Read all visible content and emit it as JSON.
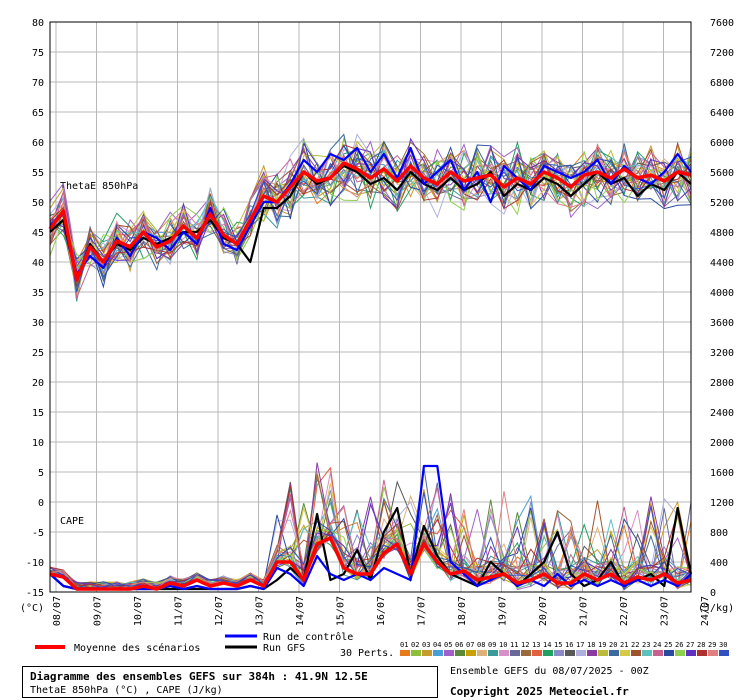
{
  "chart_data": {
    "type": "line",
    "title": "Diagramme des ensembles GEFS sur 384h : 41.9N 12.5E",
    "subtitle": "ThetaE 850hPa (°C) , CAPE (J/kg)",
    "x": [
      "08/07",
      "09/07",
      "10/07",
      "11/07",
      "12/07",
      "13/07",
      "14/07",
      "15/07",
      "16/07",
      "17/07",
      "18/07",
      "19/07",
      "20/07",
      "21/07",
      "22/07",
      "23/07",
      "24/07"
    ],
    "left_axis": {
      "unit": "(°C)",
      "ticks": [
        80,
        75,
        70,
        65,
        60,
        55,
        50,
        45,
        40,
        35,
        30,
        25,
        20,
        15,
        10,
        5,
        0,
        -5,
        -10,
        -15
      ],
      "ylim": [
        -15,
        80
      ]
    },
    "right_axis": {
      "unit": "(J/kg)",
      "ticks": [
        7600,
        7200,
        6800,
        6400,
        6000,
        5600,
        5200,
        4800,
        4400,
        4000,
        3600,
        3200,
        2800,
        2400,
        2000,
        1600,
        1200,
        800,
        400,
        0
      ],
      "ylim": [
        0,
        7600
      ]
    },
    "grid": true,
    "panel_labels": {
      "thetae": "ThetaE 850hPa",
      "cape": "CAPE"
    },
    "series": [
      {
        "name": "Moyenne des scénarios",
        "color": "#ff0000",
        "thetae": [
          45.5,
          48.5,
          37,
          42.5,
          40,
          43.5,
          42.5,
          45,
          42.5,
          43.5,
          46,
          44,
          48,
          44.5,
          43,
          47,
          51,
          50,
          52.5,
          55,
          53.5,
          54,
          56.5,
          55.5,
          54,
          55.5,
          53.5,
          56,
          54,
          53,
          55,
          53.5,
          54,
          54.5,
          52.5,
          54,
          53,
          55,
          54,
          52.5,
          54.5,
          55,
          54,
          55.5,
          54,
          54.5,
          53.5,
          55,
          54.5
        ],
        "cape": [
          -12,
          -12.5,
          -14.5,
          -14.5,
          -14.5,
          -14.5,
          -14.5,
          -14,
          -14.5,
          -13.5,
          -14,
          -13,
          -14,
          -13.5,
          -14,
          -13,
          -14,
          -10,
          -10,
          -13,
          -7,
          -6,
          -11,
          -12,
          -12,
          -8.5,
          -7,
          -12,
          -7,
          -10,
          -12,
          -11.5,
          -13,
          -12.5,
          -12,
          -13.5,
          -13,
          -12,
          -13.5,
          -13.5,
          -12,
          -13,
          -12,
          -13.5,
          -12.5,
          -13,
          -12,
          -13.5,
          -13
        ]
      },
      {
        "name": "Run de contrôle",
        "color": "#0000ff",
        "thetae": [
          46,
          48,
          38,
          41,
          39,
          44,
          41,
          45,
          44,
          42,
          45,
          43,
          49,
          43,
          42,
          46,
          50,
          50,
          53,
          57,
          55,
          58,
          57,
          59,
          55,
          58,
          54,
          59,
          53,
          55,
          57,
          52,
          55,
          50,
          56,
          54,
          52,
          56,
          55,
          54,
          55,
          57,
          53,
          56,
          54,
          53,
          55,
          58,
          55
        ],
        "cape": [
          -12,
          -14,
          -14.5,
          -14.5,
          -14.5,
          -14.5,
          -14.5,
          -14.5,
          -14.5,
          -14,
          -14.5,
          -14,
          -14.5,
          -14.5,
          -14.5,
          -14,
          -14.5,
          -11,
          -12,
          -14,
          -9,
          -12,
          -13,
          -12,
          -13,
          -11,
          -12,
          -13,
          6,
          6,
          -10,
          -12,
          -14,
          -13,
          -12,
          -14,
          -13,
          -14,
          -12,
          -14,
          -13,
          -14,
          -13,
          -14,
          -13,
          -14,
          -13,
          -14,
          -12
        ]
      },
      {
        "name": "Run GFS",
        "color": "#000000",
        "thetae": [
          45,
          47,
          37,
          43,
          40,
          43,
          42,
          44,
          43,
          44,
          45,
          45,
          47,
          44,
          43,
          40,
          49,
          49,
          51,
          55,
          53,
          54,
          56,
          55,
          53,
          54,
          52,
          55,
          53,
          52,
          54,
          52,
          53,
          55,
          51,
          53,
          52,
          54,
          53,
          51,
          53,
          55,
          53,
          54,
          51,
          53,
          52,
          55,
          53
        ],
        "cape": [
          -12,
          -14,
          -14.5,
          -14.5,
          -14.5,
          -14.5,
          -14.5,
          -14.5,
          -14.5,
          -14.5,
          -14.5,
          -14.5,
          -14.5,
          -14.5,
          -14.5,
          -14,
          -14.5,
          -13,
          -11,
          -13,
          -2,
          -13,
          -12,
          -8,
          -13,
          -5,
          -1,
          -12,
          -4,
          -9,
          -12,
          -13,
          -14,
          -10,
          -12,
          -14,
          -12,
          -10,
          -5,
          -12,
          -14,
          -13,
          -10,
          -14,
          -13,
          -12,
          -14,
          -1,
          -12
        ]
      }
    ],
    "perturbation_count": 30,
    "perturbation_labels": [
      "01",
      "02",
      "03",
      "04",
      "05",
      "06",
      "07",
      "08",
      "09",
      "10",
      "11",
      "12",
      "13",
      "14",
      "15",
      "16",
      "17",
      "18",
      "19",
      "20",
      "21",
      "22",
      "23",
      "24",
      "25",
      "26",
      "27",
      "28",
      "29",
      "30"
    ],
    "perturbation_colors": [
      "#e87a1a",
      "#8cbf3a",
      "#c89b2e",
      "#4a9ed8",
      "#a060c8",
      "#5a8a3a",
      "#c8a000",
      "#dcb27a",
      "#3a9a9a",
      "#d890c8",
      "#6a6a9a",
      "#9a6a3a",
      "#e06040",
      "#20a060",
      "#8a8ac8",
      "#5a5a5a",
      "#b0b0e0",
      "#8a3aa0",
      "#bcbc3c",
      "#3a6aa0",
      "#d8c848",
      "#a0522d",
      "#60c0c0",
      "#c86090",
      "#2a4aa0",
      "#90d050",
      "#6030c0",
      "#b03030",
      "#e08080",
      "#3050c0"
    ]
  },
  "legend": {
    "mean_label": "Moyenne des scénarios",
    "control_label": "Run de contrôle",
    "gfs_label": "Run GFS",
    "perts_label": "30 Perts."
  },
  "footer": {
    "title": "Diagramme des ensembles GEFS sur 384h : 41.9N 12.5E",
    "subtitle": "ThetaE 850hPa (°C) , CAPE (J/kg)",
    "ensemble_info": "Ensemble GEFS du 08/07/2025 - 00Z",
    "copyright": "Copyright 2025 Meteociel.fr"
  }
}
